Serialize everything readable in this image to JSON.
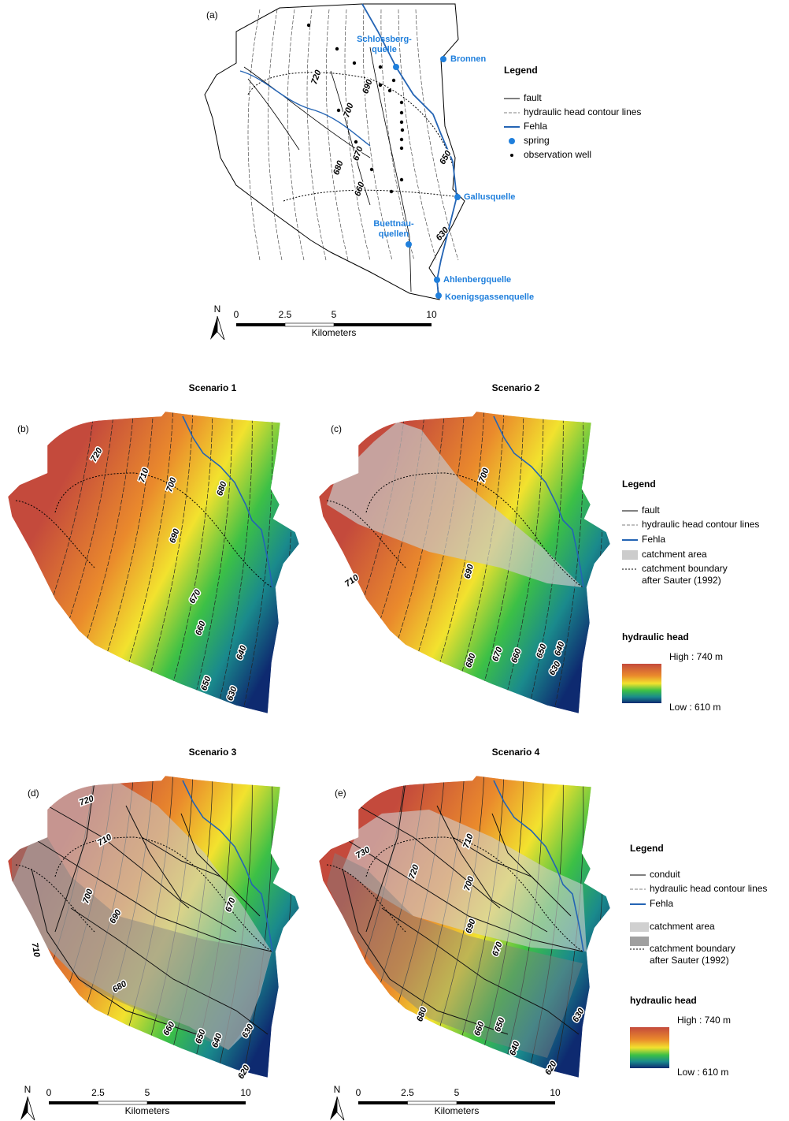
{
  "panel_a": {
    "label": "(a)",
    "north": "N",
    "springs": [
      {
        "lines": [
          "Schlossberg-",
          "quelle"
        ]
      },
      {
        "lines": [
          "Bronnen"
        ]
      },
      {
        "lines": [
          "Gallusquelle"
        ]
      },
      {
        "lines": [
          "Buettnau-",
          "quellen"
        ]
      },
      {
        "lines": [
          "Ahlenbergquelle"
        ]
      },
      {
        "lines": [
          "Koenigsgassenquelle"
        ]
      }
    ],
    "contour_labels": [
      "720",
      "700",
      "690",
      "680",
      "670",
      "660",
      "650",
      "630"
    ],
    "legend": {
      "title": "Legend",
      "items": [
        {
          "lines": [
            "fault"
          ]
        },
        {
          "lines": [
            "hydraulic head contour lines"
          ]
        },
        {
          "lines": [
            "Fehla"
          ]
        },
        {
          "lines": [
            "spring"
          ]
        },
        {
          "lines": [
            "observation well"
          ]
        }
      ]
    },
    "scale_bar": {
      "ticks": [
        "0",
        "2.5",
        "5",
        "10"
      ],
      "unit": "Kilometers"
    }
  },
  "scenarios": [
    {
      "title": "Scenario 1",
      "label": "(b)",
      "contour_labels": [
        "720",
        "710",
        "700",
        "690",
        "680",
        "670",
        "660",
        "650",
        "640",
        "630"
      ]
    },
    {
      "title": "Scenario 2",
      "label": "(c)",
      "contour_labels": [
        "700",
        "710",
        "690",
        "680",
        "670",
        "660",
        "650",
        "640",
        "630"
      ]
    },
    {
      "title": "Scenario 3",
      "label": "(d)",
      "contour_labels": [
        "720",
        "710",
        "700",
        "690",
        "680",
        "670",
        "660",
        "650",
        "640",
        "630",
        "620",
        "710"
      ]
    },
    {
      "title": "Scenario 4",
      "label": "(e)",
      "contour_labels": [
        "730",
        "710",
        "720",
        "700",
        "690",
        "670",
        "680",
        "660",
        "650",
        "640",
        "630",
        "620"
      ]
    }
  ],
  "legend_top": {
    "title": "Legend",
    "items": [
      {
        "lines": [
          "fault"
        ]
      },
      {
        "lines": [
          "hydraulic head contour lines"
        ]
      },
      {
        "lines": [
          "Fehla"
        ]
      },
      {
        "lines": [
          "catchment area"
        ]
      },
      {
        "lines": [
          "catchment boundary",
          "after Sauter (1992)"
        ]
      }
    ],
    "ramp_title": "hydraulic head",
    "high": "High : 740 m",
    "low": "Low : 610 m"
  },
  "legend_bottom": {
    "title": "Legend",
    "items": [
      {
        "lines": [
          "conduit"
        ]
      },
      {
        "lines": [
          "hydraulic head contour lines"
        ]
      },
      {
        "lines": [
          "Fehla"
        ]
      },
      {
        "lines": [
          "catchment area"
        ]
      },
      {
        "lines": [
          "catchment boundary",
          "after Sauter (1992)"
        ]
      }
    ],
    "ramp_title": "hydraulic head",
    "high": "High : 740 m",
    "low": "Low : 610 m"
  },
  "scale_bars": [
    {
      "ticks": [
        "0",
        "2.5",
        "5",
        "10"
      ],
      "unit": "Kilometers",
      "north": "N"
    },
    {
      "ticks": [
        "0",
        "2.5",
        "5",
        "10"
      ],
      "unit": "Kilometers",
      "north": "N"
    }
  ]
}
